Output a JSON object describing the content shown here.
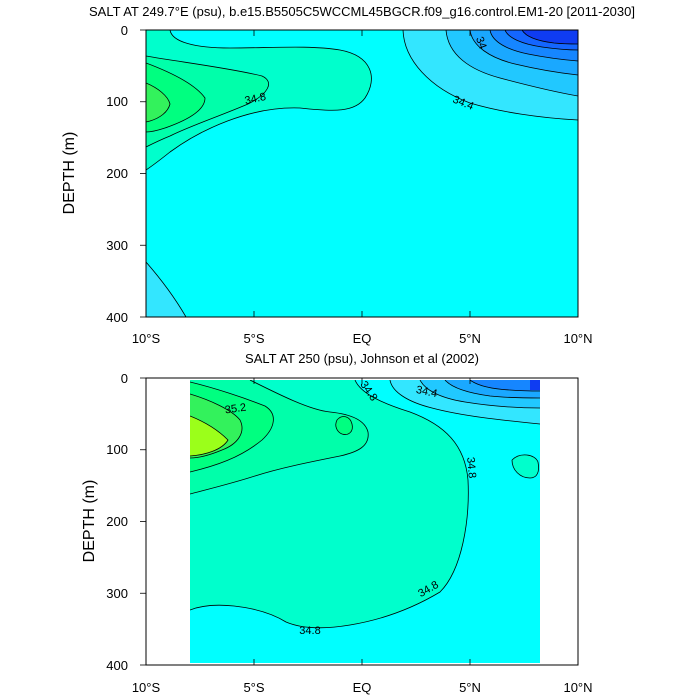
{
  "colors": {
    "cyan": "#00FFFF",
    "lt_blue1": "#33E6FF",
    "lt_blue2": "#21C8FF",
    "mid_blue1": "#1AA8FF",
    "mid_blue2": "#1686FF",
    "blue3": "#1466FF",
    "deep_blue": "#0F3CF2",
    "aqua_green": "#00FFCC",
    "green1": "#00FFAA",
    "green2": "#00FF80",
    "green3": "#33F25C",
    "lime": "#9BFF1A",
    "white": "#FFFFFF"
  },
  "chart_data": [
    {
      "type": "contour",
      "title": "SALT AT 249.7°E (psu), b.e15.B5505C5WCCML45BGCR.f09_g16.control.EM1-20 [2011-2030]",
      "xlabel": "",
      "ylabel": "DEPTH (m)",
      "x_ticks": [
        "10°S",
        "5°S",
        "EQ",
        "5°N",
        "10°N"
      ],
      "y_ticks": [
        "0",
        "100",
        "200",
        "300",
        "400"
      ],
      "xlim_deg": [
        -10,
        10
      ],
      "ylim_m": [
        400,
        0
      ],
      "contour_labels": [
        "34",
        "34.8",
        "34.4"
      ],
      "contour_interval_psu": 0.2,
      "max_salinity_region": "approx. 9.5°S–8°S, 60–130 m",
      "min_salinity_region": "approx. 7°N–10°N, 0–30 m"
    },
    {
      "type": "contour",
      "title": "SALT AT 250 (psu), Johnson et al (2002)",
      "xlabel": "",
      "ylabel": "DEPTH (m)",
      "x_ticks": [
        "10°S",
        "5°S",
        "EQ",
        "5°N",
        "10°N"
      ],
      "y_ticks": [
        "0",
        "100",
        "200",
        "300",
        "400"
      ],
      "xlim_deg": [
        -10,
        10
      ],
      "ylim_m": [
        400,
        0
      ],
      "data_xrange_deg": [
        -8,
        8
      ],
      "contour_labels": [
        "35.2",
        "34.8",
        "34.4",
        "34.8",
        "34.8",
        "34.8"
      ],
      "contour_interval_psu": 0.2,
      "max_salinity_region": "approx. 8°S–7°S, 70–110 m",
      "min_salinity_region": "approx. 7.5°N–8°N, 0–20 m"
    }
  ]
}
